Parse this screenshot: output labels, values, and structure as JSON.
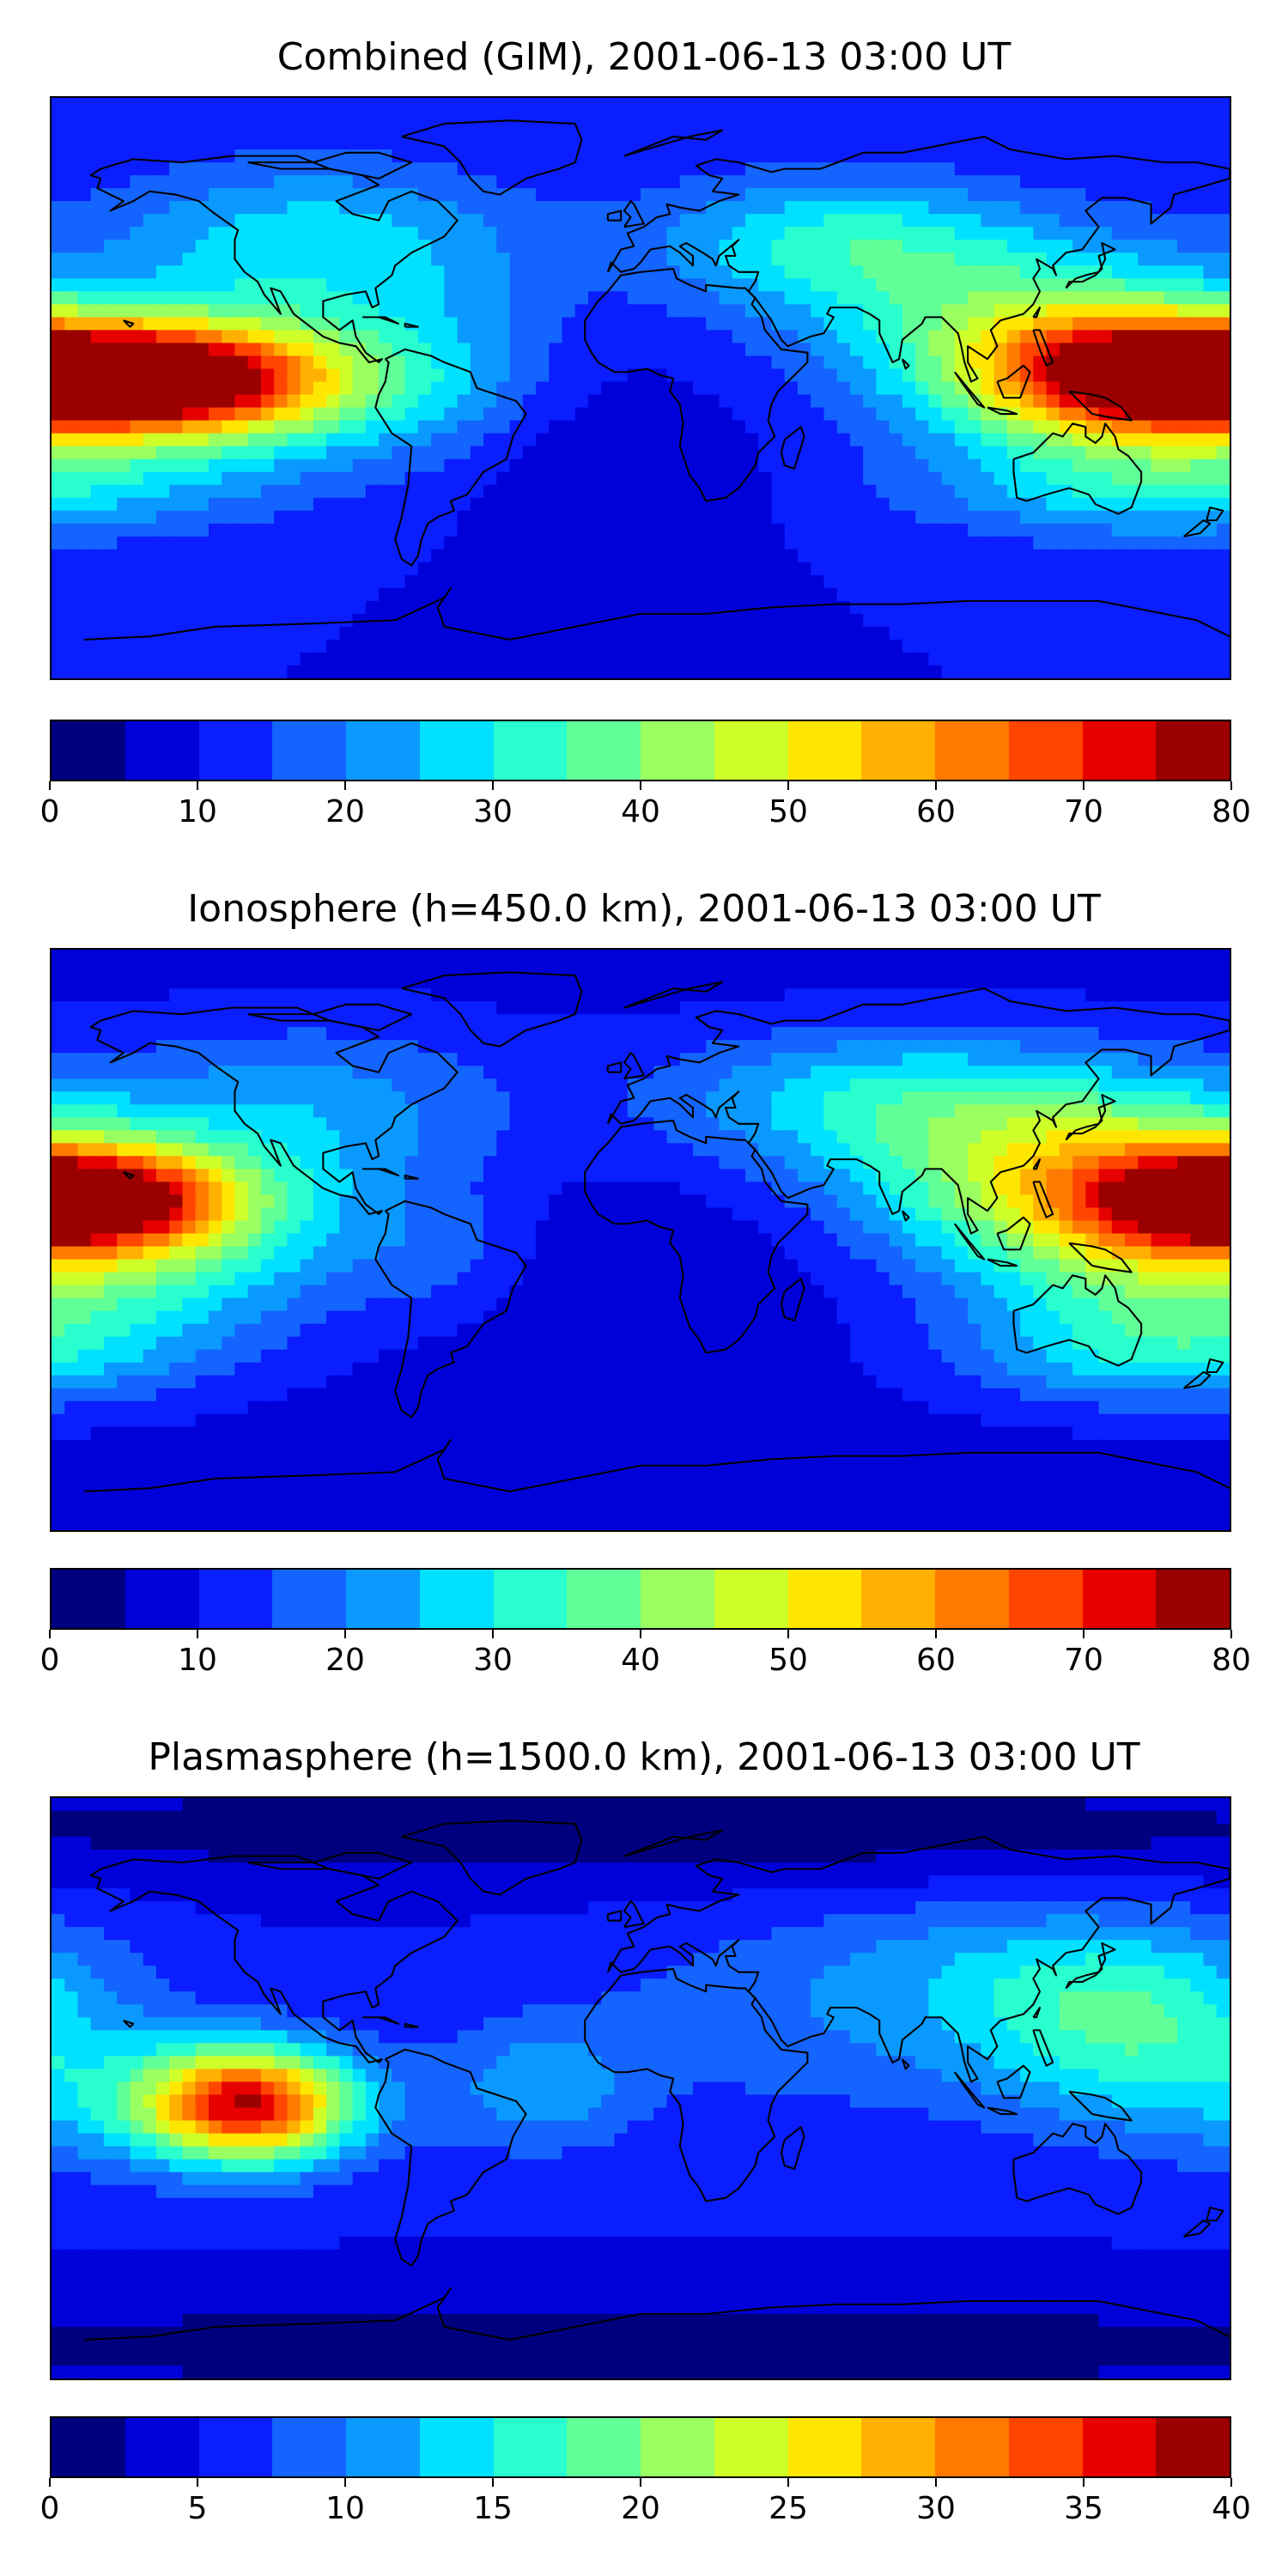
{
  "panels": [
    {
      "title": "Combined (GIM), 2001-06-13 03:00 UT",
      "colorbar": {
        "min": 0,
        "max": 80,
        "step": 5,
        "tick_labels": [
          "0",
          "10",
          "20",
          "30",
          "40",
          "50",
          "60",
          "70",
          "80"
        ]
      },
      "field": {
        "background": 10,
        "features": [
          {
            "lon": -155,
            "lat": 3,
            "sx": 40,
            "sy": 12,
            "amp": 68
          },
          {
            "lon": -120,
            "lat": 0,
            "sx": 35,
            "sy": 18,
            "amp": 20
          },
          {
            "lon": 150,
            "lat": 3,
            "sx": 35,
            "sy": 14,
            "amp": 48
          },
          {
            "lon": 120,
            "lat": 18,
            "sx": 45,
            "sy": 20,
            "amp": 25
          },
          {
            "lon": -100,
            "lat": 45,
            "sx": 45,
            "sy": 18,
            "amp": 18
          },
          {
            "lon": 60,
            "lat": 45,
            "sx": 40,
            "sy": 15,
            "amp": 20
          },
          {
            "lon": 160,
            "lat": -30,
            "sx": 50,
            "sy": 12,
            "amp": 20
          },
          {
            "lon": -60,
            "lat": 5,
            "sx": 25,
            "sy": 20,
            "amp": 10
          },
          {
            "lon": -10,
            "lat": -25,
            "sx": 30,
            "sy": 20,
            "amp": -5
          }
        ]
      }
    },
    {
      "title": "Ionosphere  (h=450.0 km), 2001-06-13 03:00 UT",
      "colorbar": {
        "min": 0,
        "max": 80,
        "step": 5,
        "tick_labels": [
          "0",
          "10",
          "20",
          "30",
          "40",
          "50",
          "60",
          "70",
          "80"
        ]
      },
      "field": {
        "background": 8,
        "features": [
          {
            "lon": -170,
            "lat": 13,
            "sx": 30,
            "sy": 10,
            "amp": 48
          },
          {
            "lon": -145,
            "lat": 0,
            "sx": 45,
            "sy": 20,
            "amp": 20
          },
          {
            "lon": 155,
            "lat": 10,
            "sx": 45,
            "sy": 22,
            "amp": 42
          },
          {
            "lon": 110,
            "lat": 30,
            "sx": 45,
            "sy": 20,
            "amp": 18
          },
          {
            "lon": -100,
            "lat": 40,
            "sx": 45,
            "sy": 20,
            "amp": 14
          },
          {
            "lon": 60,
            "lat": 45,
            "sx": 45,
            "sy": 15,
            "amp": 14
          },
          {
            "lon": 160,
            "lat": -35,
            "sx": 45,
            "sy": 12,
            "amp": 18
          },
          {
            "lon": -60,
            "lat": -5,
            "sx": 20,
            "sy": 15,
            "amp": 6
          },
          {
            "lon": 0,
            "lat": -20,
            "sx": 40,
            "sy": 25,
            "amp": -3
          }
        ]
      }
    },
    {
      "title": "Plasmasphere (h=1500.0 km), 2001-06-13 03:00 UT",
      "colorbar": {
        "min": 0,
        "max": 40,
        "step": 2.5,
        "tick_labels": [
          "0",
          "5",
          "10",
          "15",
          "20",
          "25",
          "30",
          "35",
          "40"
        ]
      },
      "field": {
        "background": 5,
        "features": [
          {
            "lon": -120,
            "lat": -5,
            "sx": 22,
            "sy": 12,
            "amp": 28
          },
          {
            "lon": -150,
            "lat": -5,
            "sx": 50,
            "sy": 16,
            "amp": 6
          },
          {
            "lon": 150,
            "lat": 20,
            "sx": 35,
            "sy": 18,
            "amp": 10
          },
          {
            "lon": 60,
            "lat": 20,
            "sx": 60,
            "sy": 22,
            "amp": 4
          },
          {
            "lon": -30,
            "lat": 0,
            "sx": 20,
            "sy": 14,
            "amp": 6
          },
          {
            "lon": 120,
            "lat": 40,
            "sx": 50,
            "sy": 15,
            "amp": 4
          },
          {
            "lon": 0,
            "lat": 80,
            "sx": 200,
            "sy": 12,
            "amp": -4
          },
          {
            "lon": 0,
            "lat": -80,
            "sx": 200,
            "sy": 12,
            "amp": -4
          }
        ]
      }
    }
  ],
  "colormap": [
    "#00007f",
    "#0000d9",
    "#0a1eff",
    "#1464ff",
    "#0a9aff",
    "#00e1ff",
    "#29ffce",
    "#60ff97",
    "#9aff60",
    "#ceff29",
    "#ffe600",
    "#ffb000",
    "#ff7a00",
    "#ff4500",
    "#e60000",
    "#9b0000"
  ]
}
